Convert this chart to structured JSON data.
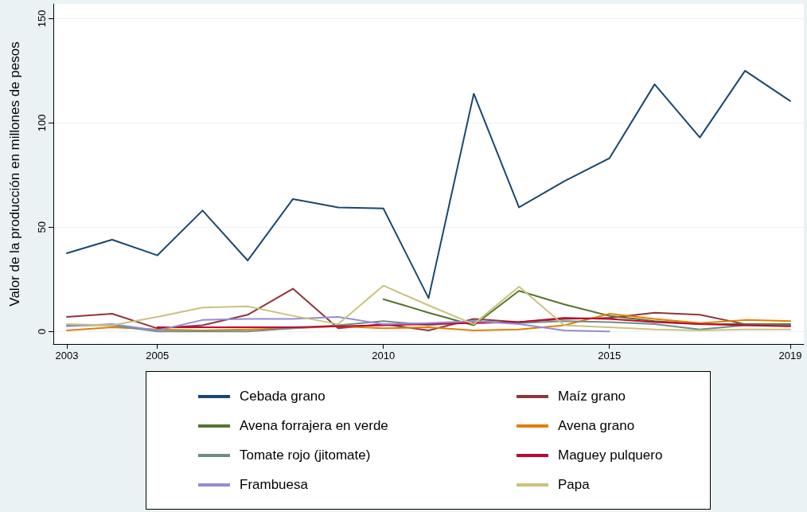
{
  "chart_data": {
    "type": "line",
    "ylabel": "Valor de la producción en millones de pesos",
    "x": [
      2003,
      2004,
      2005,
      2006,
      2007,
      2008,
      2009,
      2010,
      2011,
      2012,
      2013,
      2014,
      2015,
      2016,
      2017,
      2018,
      2019
    ],
    "series": [
      {
        "name": "Cebada grano",
        "color": "#1a476f",
        "values": [
          37.5,
          44,
          36.5,
          58,
          34,
          63.5,
          59.5,
          59,
          16,
          114,
          59.5,
          72,
          83,
          118.5,
          93,
          125,
          110.5
        ]
      },
      {
        "name": "Maíz grano",
        "color": "#90353b",
        "values": [
          7,
          8.5,
          1.5,
          3,
          8,
          20.5,
          1.5,
          3.5,
          0.5,
          6,
          4.5,
          6,
          6.5,
          9,
          8,
          3.5,
          3
        ]
      },
      {
        "name": "Avena forrajera en verde",
        "color": "#55752f",
        "values": [
          null,
          null,
          null,
          null,
          null,
          null,
          null,
          15.5,
          9,
          3,
          19.5,
          13,
          7.5,
          5,
          3.5,
          3.5,
          3.5
        ]
      },
      {
        "name": "Avena grano",
        "color": "#e37e00",
        "values": [
          0.5,
          2,
          1,
          0.5,
          1,
          1.5,
          2.5,
          1.5,
          2,
          0.5,
          1,
          3,
          8.5,
          6,
          4,
          5.5,
          5
        ]
      },
      {
        "name": "Tomate rojo (jitomate)",
        "color": "#6e8e84",
        "values": [
          3,
          3,
          0,
          0,
          0,
          1.5,
          3,
          5,
          3,
          5,
          4,
          5,
          4.5,
          3.5,
          1,
          3,
          3
        ]
      },
      {
        "name": "Maguey pulquero",
        "color": "#c10534",
        "values": [
          null,
          null,
          2,
          2,
          2,
          2,
          2.5,
          3,
          3.5,
          4,
          4.5,
          6.5,
          6,
          4.5,
          3.5,
          3,
          2.5
        ]
      },
      {
        "name": "Frambuesa",
        "color": "#938dd2",
        "values": [
          2.5,
          3.5,
          0.5,
          5.5,
          6,
          6,
          7,
          3.5,
          4,
          5,
          3.5,
          0.5,
          0,
          null,
          null,
          null,
          null
        ]
      },
      {
        "name": "Papa",
        "color": "#cac27e",
        "values": [
          3.5,
          3,
          7,
          11.5,
          12,
          7.5,
          3.5,
          22,
          12.5,
          3.5,
          21.5,
          3,
          2,
          1,
          0.5,
          1,
          1
        ]
      }
    ],
    "xlim": [
      2002.7,
      2019.3
    ],
    "xticks": [
      2003,
      2005,
      2010,
      2015,
      2019
    ],
    "ylim": [
      -6,
      157
    ],
    "yticks": [
      0,
      50,
      100,
      150
    ],
    "grid": "y",
    "legend": "bottom",
    "marker": "none",
    "line_style": "solid"
  }
}
